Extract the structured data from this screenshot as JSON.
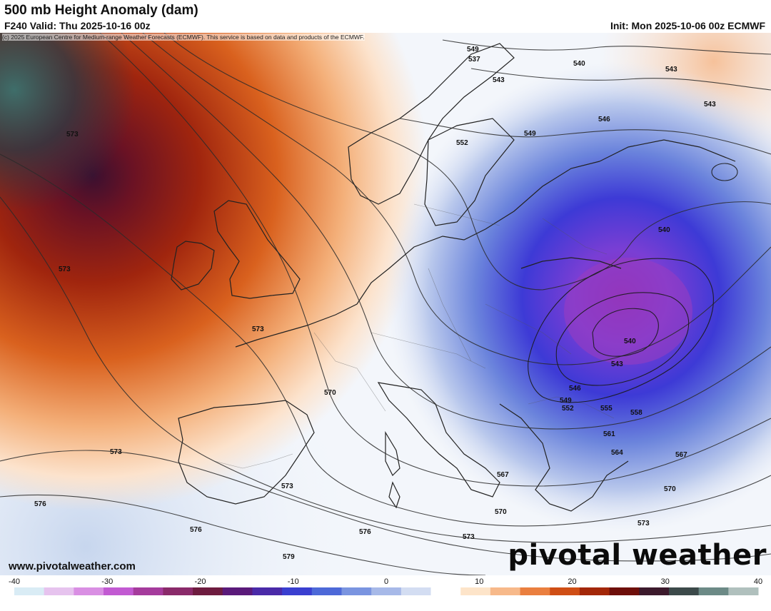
{
  "header": {
    "title": "500 mb Height Anomaly (dam)",
    "valid": "F240 Valid: Thu 2025-10-16 00z",
    "init": "Init: Mon 2025-10-06 00z ECMWF"
  },
  "copyright": "(c) 2025 European Centre for Medium-range Weather Forecasts (ECMWF). This service is based on data and products of the ECMWF.",
  "branding": {
    "url": "www.pivotalweather.com",
    "logo": "pivotal weather"
  },
  "map": {
    "anomaly_positive_color": "#9c2a0f",
    "anomaly_negative_color": "#7a2ad6",
    "contour_labels": [
      "549",
      "537",
      "540",
      "543",
      "543",
      "543",
      "546",
      "549",
      "552",
      "573",
      "573",
      "573",
      "573",
      "540",
      "540",
      "543",
      "546",
      "549",
      "552",
      "555",
      "558",
      "561",
      "564",
      "567",
      "567",
      "570",
      "570",
      "570",
      "573",
      "573",
      "573",
      "576",
      "576",
      "576",
      "579"
    ]
  },
  "colorbar": {
    "ticks": [
      "-40",
      "-30",
      "-20",
      "-10",
      "0",
      "10",
      "20",
      "30",
      "40"
    ],
    "min": -40,
    "max": 40,
    "colors": [
      "#d9ecf5",
      "#e6c3ee",
      "#d98fe3",
      "#c25ad2",
      "#a53b9c",
      "#8a2a6a",
      "#6e1c3f",
      "#5a1a7a",
      "#4a2aa8",
      "#3a3fd0",
      "#4d69d8",
      "#7a94e0",
      "#a7b9e8",
      "#d3ddf2",
      "#ffffff",
      "#fde4c9",
      "#f7b98a",
      "#ea7f3f",
      "#cf4e15",
      "#a32708",
      "#6e0f0a",
      "#3c1a2c",
      "#3c4a4a",
      "#6c8a86",
      "#b0c0bd"
    ]
  }
}
